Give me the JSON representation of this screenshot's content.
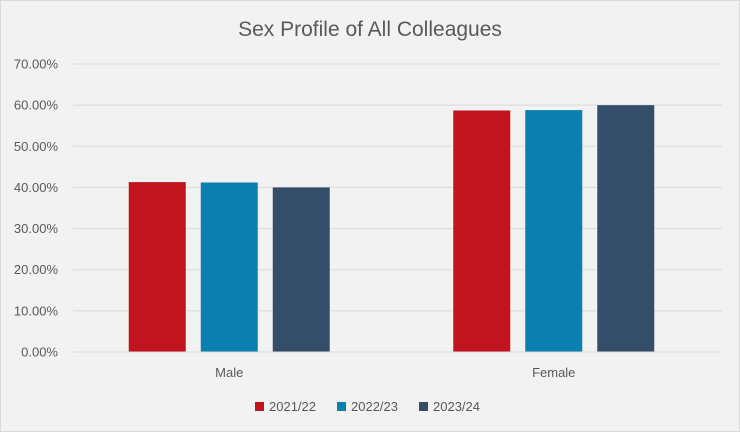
{
  "chart_data": {
    "type": "bar",
    "title": "Sex Profile of All Colleagues",
    "categories": [
      "Male",
      "Female"
    ],
    "series": [
      {
        "name": "2021/22",
        "color": "#c0141f",
        "values": [
          41.3,
          58.7
        ]
      },
      {
        "name": "2022/23",
        "color": "#0a7fb0",
        "values": [
          41.2,
          58.8
        ]
      },
      {
        "name": "2023/24",
        "color": "#344e6a",
        "values": [
          40.0,
          60.0
        ]
      }
    ],
    "yticks": [
      "0.00%",
      "10.00%",
      "20.00%",
      "30.00%",
      "40.00%",
      "50.00%",
      "60.00%",
      "70.00%"
    ],
    "ylim": [
      0,
      70
    ],
    "xlabel": "",
    "ylabel": "",
    "grid": true,
    "legend_position": "bottom"
  }
}
